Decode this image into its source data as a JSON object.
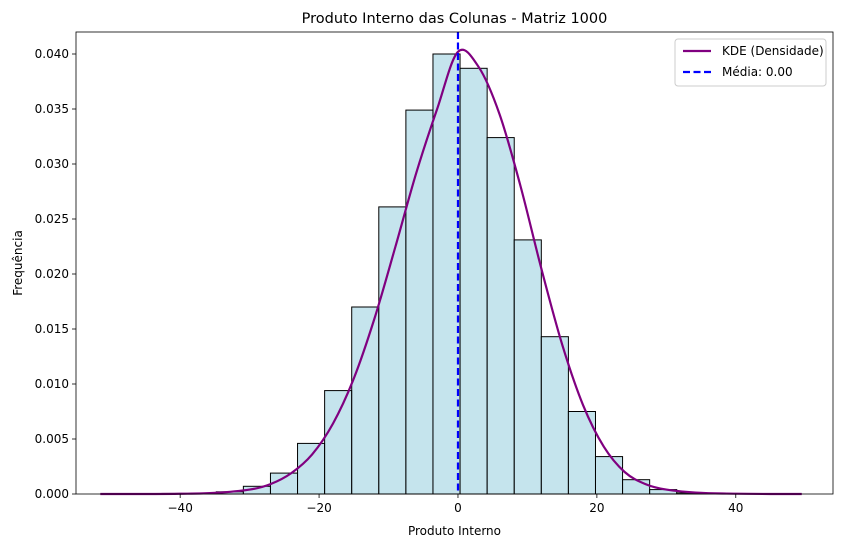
{
  "chart_data": {
    "type": "histogram",
    "title": "Produto Interno das Colunas - Matriz 1000",
    "xlabel": "Produto Interno",
    "ylabel": "Frequência",
    "xlim": [
      -55,
      54
    ],
    "ylim": [
      0,
      0.042
    ],
    "xticks": [
      -40,
      -20,
      0,
      20,
      40
    ],
    "xtick_labels": [
      "−40",
      "−20",
      "0",
      "20",
      "40"
    ],
    "yticks": [
      0.0,
      0.005,
      0.01,
      0.015,
      0.02,
      0.025,
      0.03,
      0.035,
      0.04
    ],
    "ytick_labels": [
      "0.000",
      "0.005",
      "0.010",
      "0.015",
      "0.020",
      "0.025",
      "0.030",
      "0.035",
      "0.040"
    ],
    "grid": false,
    "legend_position": "top-right",
    "colors": {
      "bar_fill": "#add8e6",
      "bar_fill_opacity": 0.7,
      "bar_edge": "#000000",
      "kde_line": "#800080",
      "mean_line": "#0000ff"
    },
    "bins": [
      {
        "x0": -42.6,
        "x1": -38.7,
        "value": 5e-05
      },
      {
        "x0": -38.7,
        "x1": -34.8,
        "value": 5e-05
      },
      {
        "x0": -34.8,
        "x1": -30.9,
        "value": 0.0002
      },
      {
        "x0": -30.9,
        "x1": -27.0,
        "value": 0.0007
      },
      {
        "x0": -27.0,
        "x1": -23.1,
        "value": 0.0019
      },
      {
        "x0": -23.1,
        "x1": -19.2,
        "value": 0.0046
      },
      {
        "x0": -19.2,
        "x1": -15.3,
        "value": 0.0094
      },
      {
        "x0": -15.3,
        "x1": -11.4,
        "value": 0.017
      },
      {
        "x0": -11.4,
        "x1": -7.5,
        "value": 0.0261
      },
      {
        "x0": -7.5,
        "x1": -3.6,
        "value": 0.0349
      },
      {
        "x0": -3.6,
        "x1": 0.3,
        "value": 0.04
      },
      {
        "x0": 0.3,
        "x1": 4.2,
        "value": 0.0387
      },
      {
        "x0": 4.2,
        "x1": 8.1,
        "value": 0.0324
      },
      {
        "x0": 8.1,
        "x1": 12.0,
        "value": 0.0231
      },
      {
        "x0": 12.0,
        "x1": 15.9,
        "value": 0.0143
      },
      {
        "x0": 15.9,
        "x1": 19.8,
        "value": 0.0075
      },
      {
        "x0": 19.8,
        "x1": 23.7,
        "value": 0.0034
      },
      {
        "x0": 23.7,
        "x1": 27.6,
        "value": 0.0013
      },
      {
        "x0": 27.6,
        "x1": 31.5,
        "value": 0.0004
      },
      {
        "x0": 31.5,
        "x1": 35.4,
        "value": 0.0001
      },
      {
        "x0": 35.4,
        "x1": 39.3,
        "value": 5e-05
      }
    ],
    "series": [
      {
        "name": "KDE (Densidade)",
        "type": "line",
        "x": [
          -51.5,
          -45,
          -40,
          -35,
          -30,
          -27,
          -24,
          -21,
          -18,
          -15,
          -12,
          -9,
          -6,
          -3,
          0,
          3,
          6,
          9,
          12,
          15,
          18,
          21,
          24,
          27,
          30,
          35,
          40,
          45,
          49.5
        ],
        "y": [
          0.0,
          0.0,
          2e-05,
          0.0001,
          0.0004,
          0.0009,
          0.0019,
          0.0036,
          0.0064,
          0.0105,
          0.016,
          0.0225,
          0.0292,
          0.035,
          0.0402,
          0.0388,
          0.0345,
          0.028,
          0.0205,
          0.0136,
          0.0081,
          0.0043,
          0.002,
          0.0009,
          0.0004,
          0.0001,
          3e-05,
          0.0,
          0.0
        ]
      },
      {
        "name": "Média: 0.00",
        "type": "vline",
        "x": 0.0
      }
    ]
  }
}
